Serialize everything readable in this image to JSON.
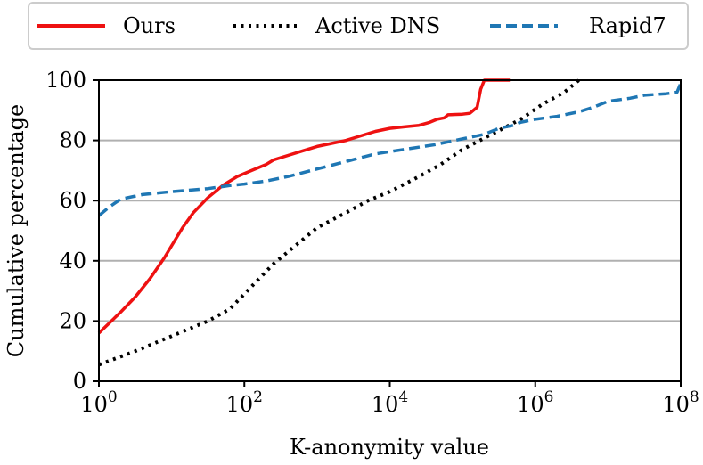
{
  "chart_data": {
    "type": "line",
    "title": "",
    "xlabel": "K-anonymity value",
    "ylabel": "Cumulative percentage",
    "xscale": "log10",
    "xlim_exp": [
      0,
      8
    ],
    "ylim": [
      0,
      100
    ],
    "x_ticks": [
      {
        "exp": 0,
        "base": "10",
        "sup": "0"
      },
      {
        "exp": 2,
        "base": "10",
        "sup": "2"
      },
      {
        "exp": 4,
        "base": "10",
        "sup": "4"
      },
      {
        "exp": 6,
        "base": "10",
        "sup": "6"
      },
      {
        "exp": 8,
        "base": "10",
        "sup": "8"
      }
    ],
    "y_ticks": [
      "0",
      "20",
      "40",
      "60",
      "80",
      "100"
    ],
    "grid": "horizontal",
    "legend_position": "top, outside, single row",
    "series": [
      {
        "name": "Ours",
        "color": "#ee1111",
        "style": "solid",
        "points": [
          [
            0,
            16
          ],
          [
            0.3,
            23
          ],
          [
            0.5,
            28
          ],
          [
            0.7,
            34
          ],
          [
            0.9,
            41
          ],
          [
            1.0,
            45
          ],
          [
            1.15,
            51
          ],
          [
            1.3,
            56
          ],
          [
            1.5,
            61
          ],
          [
            1.7,
            65
          ],
          [
            1.9,
            68
          ],
          [
            2.1,
            70
          ],
          [
            2.3,
            72
          ],
          [
            2.4,
            73.5
          ],
          [
            2.6,
            75
          ],
          [
            2.8,
            76.5
          ],
          [
            3.0,
            78
          ],
          [
            3.2,
            79
          ],
          [
            3.4,
            80
          ],
          [
            3.6,
            81.5
          ],
          [
            3.8,
            83
          ],
          [
            4.0,
            84
          ],
          [
            4.2,
            84.5
          ],
          [
            4.4,
            85
          ],
          [
            4.55,
            86
          ],
          [
            4.65,
            87
          ],
          [
            4.75,
            87.5
          ],
          [
            4.8,
            88.5
          ],
          [
            5.0,
            88.7
          ],
          [
            5.1,
            89
          ],
          [
            5.2,
            91
          ],
          [
            5.25,
            97
          ],
          [
            5.3,
            100
          ],
          [
            5.65,
            100
          ]
        ]
      },
      {
        "name": "Active DNS",
        "color": "#000000",
        "style": "dotted",
        "points": [
          [
            0,
            5.5
          ],
          [
            0.5,
            10
          ],
          [
            1.0,
            15
          ],
          [
            1.5,
            20
          ],
          [
            1.8,
            24
          ],
          [
            2.0,
            29
          ],
          [
            2.2,
            34
          ],
          [
            2.4,
            39
          ],
          [
            2.7,
            45
          ],
          [
            3.0,
            51
          ],
          [
            3.4,
            56
          ],
          [
            3.7,
            60
          ],
          [
            4.0,
            63
          ],
          [
            4.4,
            68
          ],
          [
            4.7,
            72
          ],
          [
            5.0,
            77
          ],
          [
            5.4,
            82
          ],
          [
            5.8,
            87
          ],
          [
            6.1,
            92
          ],
          [
            6.4,
            96
          ],
          [
            6.6,
            100
          ]
        ]
      },
      {
        "name": "Rapid7",
        "color": "#1f77b4",
        "style": "dashed",
        "points": [
          [
            0,
            55
          ],
          [
            0.15,
            58
          ],
          [
            0.3,
            60.5
          ],
          [
            0.6,
            62
          ],
          [
            1.0,
            63
          ],
          [
            1.5,
            64
          ],
          [
            1.8,
            65
          ],
          [
            2.0,
            65.5
          ],
          [
            2.3,
            66.5
          ],
          [
            2.6,
            68
          ],
          [
            3.0,
            70.5
          ],
          [
            3.4,
            73
          ],
          [
            3.8,
            75.5
          ],
          [
            4.2,
            77
          ],
          [
            4.6,
            78.5
          ],
          [
            5.0,
            80.5
          ],
          [
            5.3,
            82
          ],
          [
            5.5,
            84
          ],
          [
            5.7,
            85
          ],
          [
            5.8,
            86
          ],
          [
            6.0,
            87
          ],
          [
            6.3,
            88
          ],
          [
            6.6,
            89.5
          ],
          [
            6.8,
            91
          ],
          [
            7.0,
            93
          ],
          [
            7.3,
            94
          ],
          [
            7.5,
            95
          ],
          [
            7.8,
            95.5
          ],
          [
            7.95,
            96
          ],
          [
            8.0,
            99
          ]
        ]
      }
    ]
  }
}
